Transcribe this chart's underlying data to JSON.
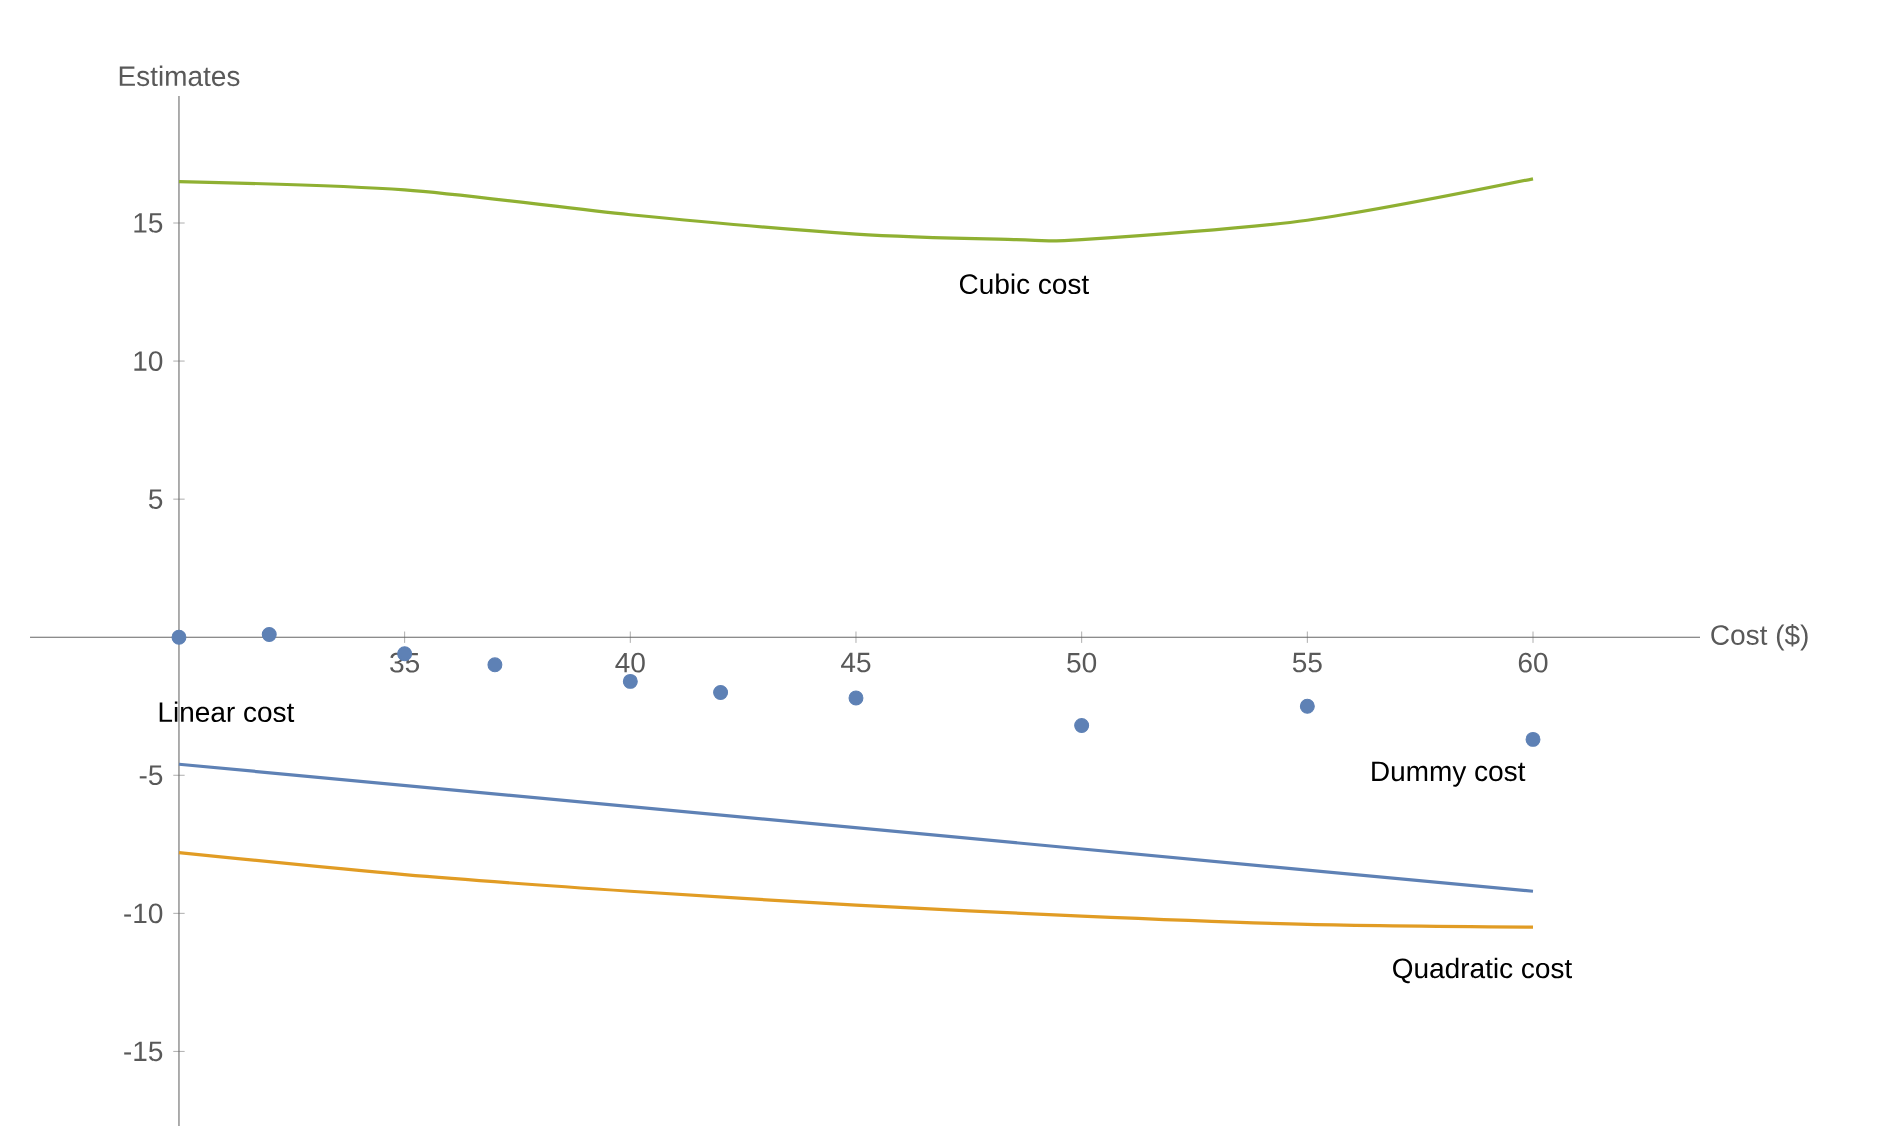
{
  "chart_data": {
    "type": "line",
    "xlabel": "Cost ($)",
    "ylabel": "Estimates",
    "xlim": [
      26.7,
      63.7
    ],
    "ylim": [
      -17.7,
      19.6
    ],
    "xticks": [
      {
        "value": 30,
        "label": null
      },
      35,
      40,
      45,
      50,
      55,
      60
    ],
    "yticks": [
      -15,
      -10,
      -5,
      {
        "value": 0,
        "label": null
      },
      5,
      10,
      15
    ],
    "line_style": "solid",
    "series": [
      {
        "name": "Linear cost",
        "color": "#5e81b5",
        "x": [
          30,
          60
        ],
        "values": [
          -4.6,
          -9.2
        ]
      },
      {
        "name": "Quadratic cost",
        "color": "#e19c24",
        "x": [
          30,
          35,
          40,
          45,
          50,
          55,
          60
        ],
        "values": [
          -7.8,
          -8.6,
          -9.2,
          -9.7,
          -10.1,
          -10.4,
          -10.5
        ]
      },
      {
        "name": "Cubic cost",
        "color": "#8fb032",
        "x": [
          30,
          35,
          40,
          45,
          48.5,
          50,
          55,
          60
        ],
        "values": [
          16.5,
          16.2,
          15.3,
          14.6,
          14.4,
          14.4,
          15.1,
          16.6
        ]
      },
      {
        "name": "Dummy cost",
        "type": "scatter",
        "marker": "circle",
        "color": "#5e81b5",
        "x": [
          30,
          32,
          35,
          37,
          40,
          42,
          45,
          50,
          55,
          60
        ],
        "values": [
          0,
          0.1,
          -0.6,
          -1,
          -1.6,
          -2,
          -2.2,
          -3.2,
          -2.5,
          -3.7
        ]
      }
    ]
  }
}
